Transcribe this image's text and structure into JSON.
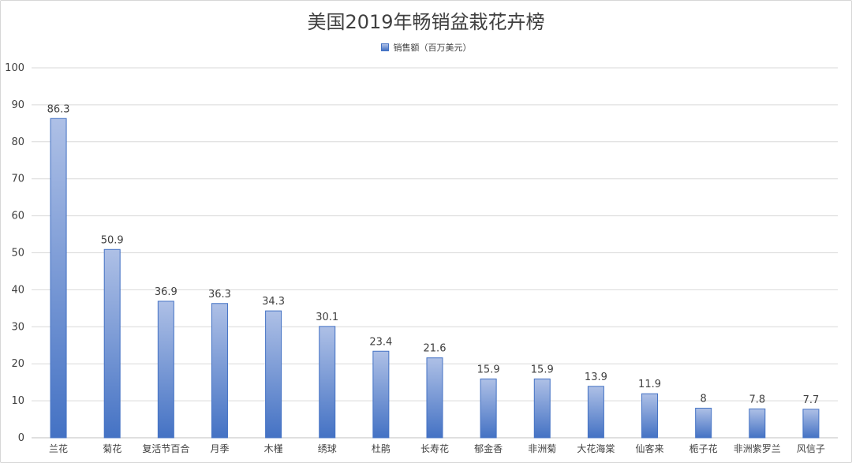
{
  "chart_data": {
    "type": "bar",
    "title": "美国2019年畅销盆栽花卉榜",
    "categories": [
      "兰花",
      "菊花",
      "复活节百合",
      "月季",
      "木槿",
      "绣球",
      "杜鹃",
      "长寿花",
      "郁金香",
      "非洲菊",
      "大花海棠",
      "仙客来",
      "栀子花",
      "非洲紫罗兰",
      "风信子"
    ],
    "series": [
      {
        "name": "销售额（百万美元）",
        "values": [
          86.3,
          50.9,
          36.9,
          36.3,
          34.3,
          30.1,
          23.4,
          21.6,
          15.9,
          15.9,
          13.9,
          11.9,
          8,
          7.8,
          7.7
        ]
      }
    ],
    "data_labels": [
      "86.3",
      "50.9",
      "36.9",
      "36.3",
      "34.3",
      "30.1",
      "23.4",
      "21.6",
      "15.9",
      "15.9",
      "13.9",
      "11.9",
      "8",
      "7.8",
      "7.7"
    ],
    "ylim": [
      0,
      100
    ],
    "yticks": [
      0,
      10,
      20,
      30,
      40,
      50,
      60,
      70,
      80,
      90,
      100
    ],
    "grid": true,
    "legend_position": "top",
    "colors": {
      "bar_top": "#aec0e6",
      "bar_bottom": "#4472c4",
      "bar_border": "#4472c4",
      "grid": "#d9d9d9"
    }
  }
}
